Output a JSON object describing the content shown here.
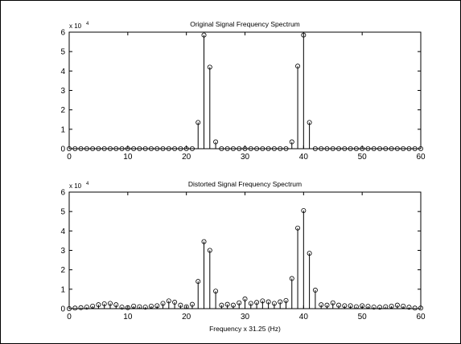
{
  "chart_data": [
    {
      "type": "stem",
      "title": "Original Signal Frequency Spectrum",
      "xlabel": "",
      "ylabel": "",
      "xlim": [
        0,
        60
      ],
      "ylim": [
        0,
        60000
      ],
      "x_ticks": [
        0,
        10,
        20,
        30,
        40,
        50,
        60
      ],
      "y_ticks": [
        0,
        1,
        2,
        3,
        4,
        5,
        6
      ],
      "y_multiplier": "x 10",
      "y_multiplier_exp": "4",
      "grid": false,
      "x": [
        0,
        1,
        2,
        3,
        4,
        5,
        6,
        7,
        8,
        9,
        10,
        11,
        12,
        13,
        14,
        15,
        16,
        17,
        18,
        19,
        20,
        21,
        22,
        23,
        24,
        25,
        26,
        27,
        28,
        29,
        30,
        31,
        32,
        33,
        34,
        35,
        36,
        37,
        38,
        39,
        40,
        41,
        42,
        43,
        44,
        45,
        46,
        47,
        48,
        49,
        50,
        51,
        52,
        53,
        54,
        55,
        56,
        57,
        58,
        59,
        60
      ],
      "values": [
        0,
        0,
        0,
        0,
        0,
        0,
        0,
        0,
        0,
        0,
        0,
        0,
        0,
        0,
        0,
        0,
        0,
        0,
        0,
        0,
        0,
        0,
        13500,
        58500,
        42000,
        3500,
        0,
        0,
        0,
        0,
        0,
        0,
        0,
        0,
        0,
        0,
        0,
        0,
        3500,
        42500,
        58500,
        13500,
        0,
        0,
        0,
        0,
        0,
        0,
        0,
        0,
        0,
        0,
        0,
        0,
        0,
        0,
        0,
        0,
        0,
        0,
        0
      ]
    },
    {
      "type": "stem",
      "title": "Distorted Signal Frequency Spectrum",
      "xlabel": "Frequency x 31.25 (Hz)",
      "ylabel": "",
      "xlim": [
        0,
        60
      ],
      "ylim": [
        0,
        60000
      ],
      "x_ticks": [
        0,
        10,
        20,
        30,
        40,
        50,
        60
      ],
      "y_ticks": [
        0,
        1,
        2,
        3,
        4,
        5,
        6
      ],
      "y_multiplier": "x 10",
      "y_multiplier_exp": "4",
      "grid": false,
      "x": [
        0,
        1,
        2,
        3,
        4,
        5,
        6,
        7,
        8,
        9,
        10,
        11,
        12,
        13,
        14,
        15,
        16,
        17,
        18,
        19,
        20,
        21,
        22,
        23,
        24,
        25,
        26,
        27,
        28,
        29,
        30,
        31,
        32,
        33,
        34,
        35,
        36,
        37,
        38,
        39,
        40,
        41,
        42,
        43,
        44,
        45,
        46,
        47,
        48,
        49,
        50,
        51,
        52,
        53,
        54,
        55,
        56,
        57,
        58,
        59,
        60
      ],
      "values": [
        0,
        300,
        500,
        800,
        1300,
        2000,
        2500,
        2700,
        2000,
        800,
        500,
        1300,
        1000,
        800,
        1300,
        1500,
        2700,
        4000,
        3300,
        1800,
        1000,
        2200,
        14000,
        34500,
        30000,
        9000,
        1800,
        2200,
        1800,
        3000,
        5000,
        2700,
        3200,
        4000,
        3500,
        2700,
        3500,
        4200,
        15500,
        41500,
        50500,
        28500,
        9500,
        2000,
        1800,
        3000,
        1800,
        1500,
        1500,
        1000,
        1500,
        1200,
        800,
        700,
        1000,
        1300,
        1800,
        1300,
        700,
        300,
        300
      ]
    }
  ]
}
